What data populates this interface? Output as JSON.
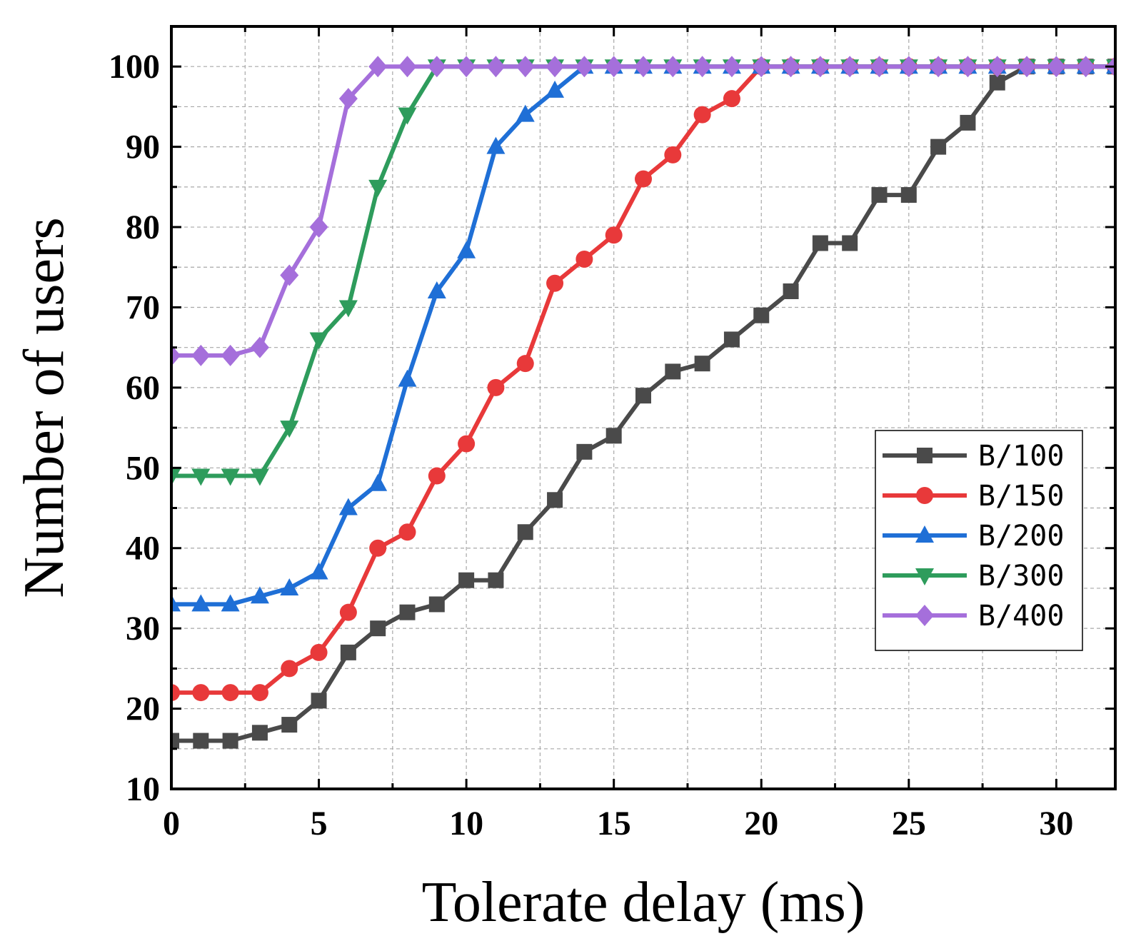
{
  "chart_data": {
    "type": "line",
    "title": "",
    "xlabel": "Tolerate delay (ms)",
    "ylabel": "Number of users",
    "xlim": [
      0,
      32
    ],
    "ylim": [
      10,
      105
    ],
    "xticks": [
      0,
      5,
      10,
      15,
      20,
      25,
      30
    ],
    "yticks": [
      10,
      20,
      30,
      40,
      50,
      60,
      70,
      80,
      90,
      100
    ],
    "grid": true,
    "legend_position": "center-right",
    "x": [
      0,
      1,
      2,
      3,
      4,
      5,
      6,
      7,
      8,
      9,
      10,
      11,
      12,
      13,
      14,
      15,
      16,
      17,
      18,
      19,
      20,
      21,
      22,
      23,
      24,
      25,
      26,
      27,
      28,
      29,
      30,
      31,
      32
    ],
    "series": [
      {
        "name": "B/100",
        "color": "#4a4a4a",
        "marker": "square",
        "values": [
          16,
          16,
          16,
          17,
          18,
          21,
          27,
          30,
          32,
          33,
          36,
          36,
          42,
          46,
          52,
          54,
          59,
          62,
          63,
          66,
          69,
          72,
          78,
          78,
          84,
          84,
          90,
          93,
          98,
          100,
          100,
          100,
          100
        ]
      },
      {
        "name": "B/150",
        "color": "#e8393a",
        "marker": "circle",
        "values": [
          22,
          22,
          22,
          22,
          25,
          27,
          32,
          40,
          42,
          49,
          53,
          60,
          63,
          73,
          76,
          79,
          86,
          89,
          94,
          96,
          100,
          100,
          100,
          100,
          100,
          100,
          100,
          100,
          100,
          100,
          100,
          100,
          100
        ]
      },
      {
        "name": "B/200",
        "color": "#1f6fd6",
        "marker": "triangle-up",
        "values": [
          33,
          33,
          33,
          34,
          35,
          37,
          45,
          48,
          61,
          72,
          77,
          90,
          94,
          97,
          100,
          100,
          100,
          100,
          100,
          100,
          100,
          100,
          100,
          100,
          100,
          100,
          100,
          100,
          100,
          100,
          100,
          100,
          100
        ]
      },
      {
        "name": "B/300",
        "color": "#2e9c5c",
        "marker": "triangle-down",
        "values": [
          49,
          49,
          49,
          49,
          55,
          66,
          70,
          85,
          94,
          100,
          100,
          100,
          100,
          100,
          100,
          100,
          100,
          100,
          100,
          100,
          100,
          100,
          100,
          100,
          100,
          100,
          100,
          100,
          100,
          100,
          100,
          100,
          100
        ]
      },
      {
        "name": "B/400",
        "color": "#a56fdb",
        "marker": "diamond",
        "values": [
          64,
          64,
          64,
          65,
          74,
          80,
          96,
          100,
          100,
          100,
          100,
          100,
          100,
          100,
          100,
          100,
          100,
          100,
          100,
          100,
          100,
          100,
          100,
          100,
          100,
          100,
          100,
          100,
          100,
          100,
          100,
          100,
          100
        ]
      }
    ]
  }
}
